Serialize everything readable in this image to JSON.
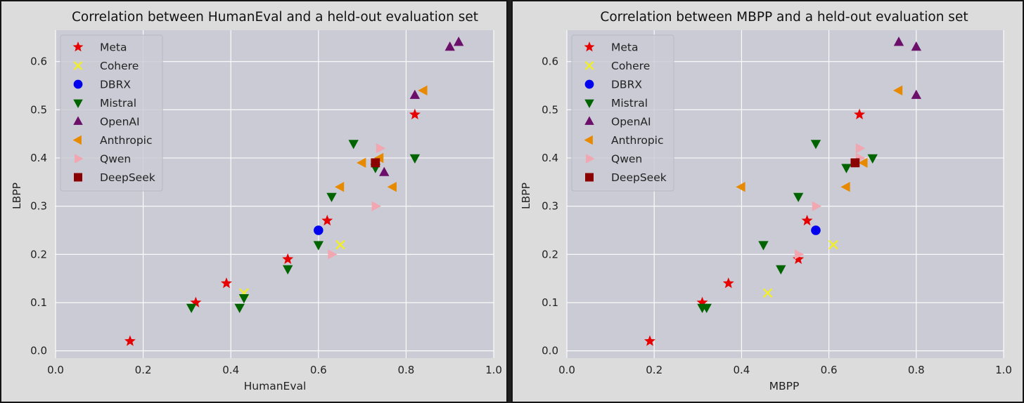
{
  "colors": {
    "Meta": "#e60000",
    "Cohere": "#f0ee2a",
    "DBRX": "#0000ee",
    "Mistral": "#006400",
    "OpenAI": "#6b0f6b",
    "Anthropic": "#e88a00",
    "Qwen": "#f2a6b0",
    "DeepSeek": "#8b0000",
    "plot_bg": "#cbcbd5",
    "grid": "#ffffff"
  },
  "markers": {
    "Meta": "star",
    "Cohere": "x",
    "DBRX": "circle",
    "Mistral": "triangle-down",
    "OpenAI": "triangle-up",
    "Anthropic": "triangle-left",
    "Qwen": "triangle-right",
    "DeepSeek": "square"
  },
  "chart_data": [
    {
      "type": "scatter",
      "title": "Correlation between HumanEval and a held-out evaluation set",
      "xlabel": "HumanEval",
      "ylabel": "LBPP",
      "xlim": [
        0.0,
        1.0
      ],
      "ylim": [
        -0.015,
        0.665
      ],
      "xticks": [
        "0.0",
        "0.2",
        "0.4",
        "0.6",
        "0.8",
        "1.0"
      ],
      "yticks": [
        "0.0",
        "0.1",
        "0.2",
        "0.3",
        "0.4",
        "0.5",
        "0.6"
      ],
      "grid": true,
      "legend_position": "top-left",
      "series": [
        {
          "name": "Meta",
          "points": [
            [
              0.17,
              0.02
            ],
            [
              0.32,
              0.1
            ],
            [
              0.39,
              0.14
            ],
            [
              0.53,
              0.19
            ],
            [
              0.62,
              0.27
            ],
            [
              0.82,
              0.49
            ]
          ]
        },
        {
          "name": "Cohere",
          "points": [
            [
              0.43,
              0.12
            ],
            [
              0.65,
              0.22
            ]
          ]
        },
        {
          "name": "DBRX",
          "points": [
            [
              0.6,
              0.25
            ]
          ]
        },
        {
          "name": "Mistral",
          "points": [
            [
              0.31,
              0.09
            ],
            [
              0.42,
              0.09
            ],
            [
              0.43,
              0.11
            ],
            [
              0.53,
              0.17
            ],
            [
              0.6,
              0.22
            ],
            [
              0.63,
              0.32
            ],
            [
              0.68,
              0.43
            ],
            [
              0.73,
              0.38
            ],
            [
              0.82,
              0.4
            ]
          ]
        },
        {
          "name": "OpenAI",
          "points": [
            [
              0.75,
              0.37
            ],
            [
              0.82,
              0.53
            ],
            [
              0.9,
              0.63
            ],
            [
              0.92,
              0.64
            ]
          ]
        },
        {
          "name": "Anthropic",
          "points": [
            [
              0.65,
              0.34
            ],
            [
              0.7,
              0.39
            ],
            [
              0.74,
              0.4
            ],
            [
              0.77,
              0.34
            ],
            [
              0.84,
              0.54
            ]
          ]
        },
        {
          "name": "Qwen",
          "points": [
            [
              0.63,
              0.2
            ],
            [
              0.73,
              0.3
            ],
            [
              0.74,
              0.42
            ]
          ]
        },
        {
          "name": "DeepSeek",
          "points": [
            [
              0.73,
              0.39
            ]
          ]
        }
      ]
    },
    {
      "type": "scatter",
      "title": "Correlation between MBPP and a held-out evaluation set",
      "xlabel": "MBPP",
      "ylabel": "LBPP",
      "xlim": [
        0.0,
        1.0
      ],
      "ylim": [
        -0.015,
        0.665
      ],
      "xticks": [
        "0.0",
        "0.2",
        "0.4",
        "0.6",
        "0.8",
        "1.0"
      ],
      "yticks": [
        "0.0",
        "0.1",
        "0.2",
        "0.3",
        "0.4",
        "0.5",
        "0.6"
      ],
      "grid": true,
      "legend_position": "top-left",
      "series": [
        {
          "name": "Meta",
          "points": [
            [
              0.19,
              0.02
            ],
            [
              0.31,
              0.1
            ],
            [
              0.37,
              0.14
            ],
            [
              0.53,
              0.19
            ],
            [
              0.55,
              0.27
            ],
            [
              0.67,
              0.49
            ]
          ]
        },
        {
          "name": "Cohere",
          "points": [
            [
              0.46,
              0.12
            ],
            [
              0.61,
              0.22
            ]
          ]
        },
        {
          "name": "DBRX",
          "points": [
            [
              0.57,
              0.25
            ]
          ]
        },
        {
          "name": "Mistral",
          "points": [
            [
              0.31,
              0.09
            ],
            [
              0.32,
              0.09
            ],
            [
              0.45,
              0.22
            ],
            [
              0.49,
              0.17
            ],
            [
              0.53,
              0.32
            ],
            [
              0.57,
              0.43
            ],
            [
              0.64,
              0.38
            ],
            [
              0.7,
              0.4
            ]
          ]
        },
        {
          "name": "OpenAI",
          "points": [
            [
              0.76,
              0.64
            ],
            [
              0.8,
              0.63
            ],
            [
              0.8,
              0.53
            ]
          ]
        },
        {
          "name": "Anthropic",
          "points": [
            [
              0.4,
              0.34
            ],
            [
              0.64,
              0.34
            ],
            [
              0.68,
              0.39
            ],
            [
              0.76,
              0.54
            ]
          ]
        },
        {
          "name": "Qwen",
          "points": [
            [
              0.53,
              0.2
            ],
            [
              0.57,
              0.3
            ],
            [
              0.67,
              0.42
            ],
            [
              0.67,
              0.4
            ]
          ]
        },
        {
          "name": "DeepSeek",
          "points": [
            [
              0.66,
              0.39
            ]
          ]
        }
      ]
    }
  ]
}
